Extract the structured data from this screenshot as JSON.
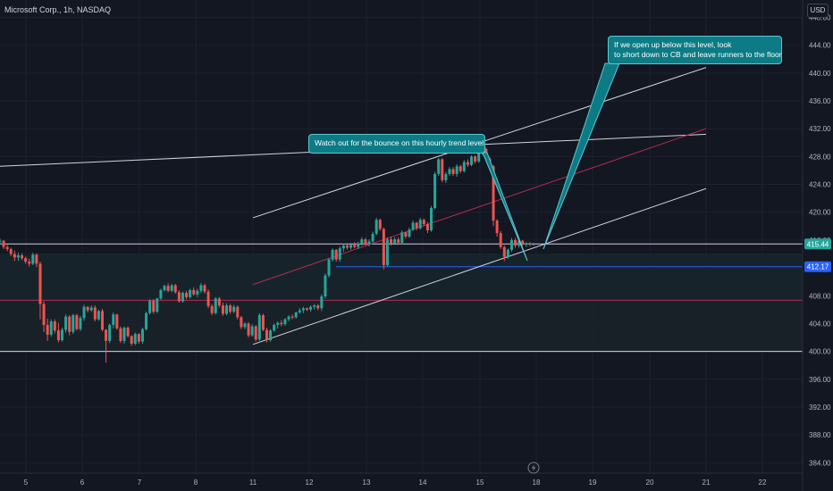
{
  "header": {
    "symbol_text": "Microsoft Corp., 1h, NASDAQ",
    "currency": "USD"
  },
  "colors": {
    "background": "#131722",
    "up": "#26a69a",
    "down": "#ef5350",
    "text": "#d1d4dc",
    "white_line": "#d1d4dc",
    "red_line": "#b22d4c",
    "blue_line": "#2962ff",
    "callout": "#0c7b85"
  },
  "chart_data": {
    "type": "candlestick",
    "y_axis": {
      "min": 382.5,
      "max": 450.5,
      "side": "right",
      "ticks": [
        "384.00",
        "388.00",
        "392.00",
        "396.00",
        "400.00",
        "404.00",
        "408.00",
        "412.00",
        "416.00",
        "420.00",
        "424.00",
        "428.00",
        "432.00",
        "436.00",
        "440.00",
        "444.00",
        "448.00"
      ]
    },
    "x_axis": {
      "ticks": [
        "5",
        "6",
        "7",
        "8",
        "11",
        "12",
        "13",
        "14",
        "15",
        "18",
        "19",
        "20",
        "21",
        "22"
      ]
    },
    "price_labels": [
      {
        "text": "415.44",
        "value": 415.44,
        "color": "#26a69a"
      },
      {
        "text": "412.17",
        "value": 412.17,
        "color": "#2962ff"
      }
    ],
    "horizontal_levels": [
      {
        "value": 415.44,
        "color": "#d1d4dc"
      },
      {
        "value": 412.17,
        "color": "#2962ff",
        "from_day": "12"
      },
      {
        "value": 407.35,
        "color": "#b22d4c"
      },
      {
        "value": 400.0,
        "color": "#d1d4dc"
      }
    ],
    "trend_lines": [
      {
        "name": "",
        "color": "#d1d4dc",
        "from": {
          "x": "4",
          "y": 426.4
        },
        "to": {
          "x": "21",
          "y": 431.2
        }
      },
      {
        "name": "",
        "color": "#d1d4dc",
        "from": {
          "x": "11",
          "y": 419.2
        },
        "to": {
          "x": "21",
          "y": 440.8
        }
      },
      {
        "name": "",
        "color": "#b22d4c",
        "from": {
          "x": "11",
          "y": 409.6
        },
        "to": {
          "x": "21",
          "y": 432.0
        }
      },
      {
        "name": "",
        "color": "#d1d4dc",
        "from": {
          "x": "11",
          "y": 401.0
        },
        "to": {
          "x": "21",
          "y": 423.4
        }
      }
    ],
    "annotations": [
      {
        "lines": [
          "Watch out for the bounce on this hourly trend level"
        ]
      },
      {
        "lines": [
          "If we open up below this level, look",
          "to short down to CB and leave runners to the floor"
        ]
      }
    ],
    "candles": [
      [
        415.8,
        416.2,
        415.4,
        415.9
      ],
      [
        415.9,
        416.0,
        414.7,
        415.0
      ],
      [
        415.0,
        415.3,
        414.4,
        414.7
      ],
      [
        414.7,
        414.9,
        413.7,
        414.0
      ],
      [
        414.0,
        414.5,
        413.0,
        413.5
      ],
      [
        413.5,
        414.2,
        413.0,
        413.8
      ],
      [
        413.8,
        414.1,
        413.1,
        413.4
      ],
      [
        413.4,
        413.6,
        412.6,
        412.9
      ],
      [
        412.9,
        413.3,
        412.2,
        412.6
      ],
      [
        412.6,
        414.2,
        412.4,
        413.9
      ],
      [
        413.9,
        414.1,
        412.1,
        412.6
      ],
      [
        412.6,
        412.9,
        404.6,
        406.8
      ],
      [
        406.8,
        407.2,
        402.8,
        403.8
      ],
      [
        403.8,
        404.7,
        401.5,
        402.4
      ],
      [
        402.4,
        404.6,
        402.1,
        404.3
      ],
      [
        404.3,
        404.6,
        402.6,
        403.0
      ],
      [
        403.0,
        404.1,
        401.3,
        401.6
      ],
      [
        401.6,
        403.4,
        401.4,
        403.1
      ],
      [
        403.1,
        405.3,
        402.7,
        405.0
      ],
      [
        405.0,
        405.2,
        402.3,
        402.8
      ],
      [
        402.8,
        405.4,
        402.5,
        405.2
      ],
      [
        405.2,
        405.4,
        403.0,
        403.2
      ],
      [
        403.2,
        405.1,
        402.9,
        404.8
      ],
      [
        404.8,
        406.7,
        404.4,
        406.4
      ],
      [
        406.4,
        406.5,
        405.6,
        405.9
      ],
      [
        405.9,
        406.6,
        405.7,
        406.3
      ],
      [
        406.3,
        406.6,
        404.3,
        404.6
      ],
      [
        404.6,
        406.0,
        404.4,
        405.8
      ],
      [
        405.8,
        406.1,
        402.9,
        403.1
      ],
      [
        403.1,
        403.2,
        398.4,
        401.5
      ],
      [
        401.5,
        404.0,
        401.2,
        403.8
      ],
      [
        403.8,
        405.6,
        403.3,
        405.3
      ],
      [
        405.3,
        405.4,
        403.1,
        403.3
      ],
      [
        403.3,
        403.6,
        401.2,
        401.5
      ],
      [
        401.5,
        403.6,
        401.1,
        403.4
      ],
      [
        403.4,
        403.6,
        402.0,
        402.2
      ],
      [
        402.2,
        402.3,
        400.8,
        401.1
      ],
      [
        401.1,
        402.7,
        400.9,
        402.5
      ],
      [
        402.5,
        402.6,
        401.1,
        401.4
      ],
      [
        401.4,
        403.4,
        401.1,
        403.2
      ],
      [
        403.2,
        405.7,
        403.0,
        405.5
      ],
      [
        405.5,
        407.5,
        405.3,
        407.3
      ],
      [
        407.3,
        407.5,
        405.4,
        405.7
      ],
      [
        405.7,
        407.7,
        405.5,
        407.6
      ],
      [
        407.6,
        409.0,
        407.4,
        408.8
      ],
      [
        408.8,
        409.6,
        408.6,
        409.4
      ],
      [
        409.4,
        409.8,
        408.5,
        408.7
      ],
      [
        408.7,
        409.7,
        408.5,
        409.5
      ],
      [
        409.5,
        409.7,
        408.3,
        408.5
      ],
      [
        408.5,
        408.8,
        407.0,
        407.2
      ],
      [
        407.2,
        408.6,
        407.0,
        408.4
      ],
      [
        408.4,
        408.7,
        407.5,
        407.8
      ],
      [
        407.8,
        409.0,
        407.6,
        408.8
      ],
      [
        408.8,
        409.2,
        408.0,
        408.2
      ],
      [
        408.2,
        409.0,
        407.8,
        408.7
      ],
      [
        408.7,
        409.8,
        408.4,
        409.5
      ],
      [
        409.5,
        409.7,
        408.3,
        408.6
      ],
      [
        408.6,
        408.9,
        406.2,
        406.5
      ],
      [
        406.5,
        406.8,
        405.2,
        405.5
      ],
      [
        405.5,
        407.8,
        405.3,
        407.6
      ],
      [
        407.6,
        407.8,
        406.3,
        406.6
      ],
      [
        406.6,
        407.0,
        405.1,
        405.4
      ],
      [
        405.4,
        406.9,
        405.2,
        406.6
      ],
      [
        406.6,
        406.8,
        405.4,
        405.7
      ],
      [
        405.7,
        406.7,
        405.5,
        406.4
      ],
      [
        406.4,
        406.6,
        404.6,
        404.9
      ],
      [
        404.9,
        405.1,
        403.2,
        403.5
      ],
      [
        403.5,
        404.2,
        403.2,
        404.0
      ],
      [
        404.0,
        404.2,
        402.0,
        402.3
      ],
      [
        402.3,
        403.9,
        402.1,
        403.6
      ],
      [
        403.6,
        403.8,
        401.4,
        401.7
      ],
      [
        401.7,
        405.5,
        401.5,
        405.2
      ],
      [
        405.2,
        405.4,
        402.9,
        403.1
      ],
      [
        403.1,
        403.4,
        401.3,
        401.6
      ],
      [
        401.6,
        403.2,
        401.4,
        403.0
      ],
      [
        403.0,
        404.0,
        402.8,
        403.8
      ],
      [
        403.8,
        404.3,
        403.3,
        404.1
      ],
      [
        404.1,
        404.5,
        403.6,
        403.9
      ],
      [
        403.9,
        404.8,
        403.7,
        404.6
      ],
      [
        404.6,
        405.2,
        404.3,
        405.0
      ],
      [
        405.0,
        405.3,
        404.6,
        404.9
      ],
      [
        404.9,
        405.7,
        404.7,
        405.6
      ],
      [
        405.6,
        406.2,
        405.4,
        405.9
      ],
      [
        405.9,
        406.4,
        405.5,
        406.2
      ],
      [
        406.2,
        406.3,
        405.8,
        406.0
      ],
      [
        406.0,
        406.6,
        405.7,
        406.4
      ],
      [
        406.4,
        406.8,
        406.0,
        406.6
      ],
      [
        406.6,
        406.8,
        405.9,
        406.2
      ],
      [
        406.2,
        408.2,
        405.8,
        407.9
      ],
      [
        407.9,
        411.2,
        407.6,
        410.9
      ],
      [
        410.9,
        413.4,
        410.6,
        413.2
      ],
      [
        413.2,
        414.8,
        412.9,
        414.6
      ],
      [
        414.6,
        414.7,
        412.9,
        413.2
      ],
      [
        413.2,
        415.1,
        412.9,
        414.8
      ],
      [
        414.8,
        415.5,
        414.3,
        415.2
      ],
      [
        415.2,
        415.4,
        414.6,
        414.9
      ],
      [
        414.9,
        415.6,
        414.6,
        415.3
      ],
      [
        415.3,
        415.7,
        414.8,
        415.0
      ],
      [
        415.0,
        415.8,
        414.7,
        415.5
      ],
      [
        415.5,
        416.4,
        415.2,
        416.1
      ],
      [
        416.1,
        416.3,
        415.2,
        415.4
      ],
      [
        415.4,
        416.1,
        415.1,
        415.8
      ],
      [
        415.8,
        417.2,
        415.6,
        416.9
      ],
      [
        416.9,
        419.2,
        416.7,
        418.9
      ],
      [
        418.9,
        419.1,
        417.3,
        417.6
      ],
      [
        417.6,
        417.8,
        411.8,
        412.4
      ],
      [
        412.4,
        416.4,
        412.2,
        416.1
      ],
      [
        416.1,
        416.5,
        415.2,
        415.5
      ],
      [
        415.5,
        416.4,
        415.3,
        416.1
      ],
      [
        416.1,
        416.4,
        415.3,
        415.6
      ],
      [
        415.6,
        417.4,
        415.4,
        417.1
      ],
      [
        417.1,
        417.2,
        416.2,
        416.5
      ],
      [
        416.5,
        417.8,
        416.3,
        417.5
      ],
      [
        417.5,
        418.8,
        417.3,
        418.5
      ],
      [
        418.5,
        418.6,
        417.4,
        417.7
      ],
      [
        417.7,
        419.2,
        417.5,
        418.9
      ],
      [
        418.9,
        419.1,
        418.0,
        418.3
      ],
      [
        418.3,
        418.6,
        417.0,
        417.4
      ],
      [
        417.4,
        420.9,
        417.2,
        420.6
      ],
      [
        420.6,
        425.8,
        420.4,
        425.5
      ],
      [
        425.5,
        427.8,
        425.2,
        427.6
      ],
      [
        427.6,
        427.8,
        424.3,
        424.6
      ],
      [
        424.6,
        425.8,
        424.2,
        425.5
      ],
      [
        425.5,
        426.5,
        425.2,
        426.2
      ],
      [
        426.2,
        426.5,
        425.2,
        425.5
      ],
      [
        425.5,
        426.9,
        425.1,
        426.6
      ],
      [
        426.6,
        426.8,
        425.6,
        425.9
      ],
      [
        425.9,
        427.5,
        425.7,
        427.2
      ],
      [
        427.2,
        427.6,
        426.5,
        426.8
      ],
      [
        426.8,
        428.2,
        426.6,
        428.0
      ],
      [
        428.0,
        428.2,
        427.0,
        427.3
      ],
      [
        427.3,
        428.8,
        427.1,
        428.5
      ],
      [
        428.5,
        429.4,
        428.2,
        429.1
      ],
      [
        429.1,
        429.3,
        427.4,
        427.7
      ],
      [
        427.7,
        427.9,
        426.4,
        426.6
      ],
      [
        426.6,
        426.8,
        418.0,
        418.8
      ],
      [
        418.8,
        419.0,
        416.5,
        417.0
      ],
      [
        417.0,
        417.3,
        414.7,
        415.0
      ],
      [
        415.0,
        415.2,
        413.0,
        413.6
      ],
      [
        413.6,
        414.8,
        413.3,
        414.6
      ],
      [
        414.6,
        416.3,
        414.3,
        416.0
      ],
      [
        416.0,
        416.3,
        414.9,
        415.2
      ],
      [
        415.2,
        416.1,
        414.9,
        415.9
      ],
      [
        415.9,
        416.0,
        415.2,
        415.4
      ],
      [
        415.4,
        415.7,
        415.0,
        415.5
      ],
      [
        415.5,
        415.7,
        415.1,
        415.4
      ],
      [
        415.4,
        415.6,
        415.2,
        415.44
      ]
    ]
  }
}
